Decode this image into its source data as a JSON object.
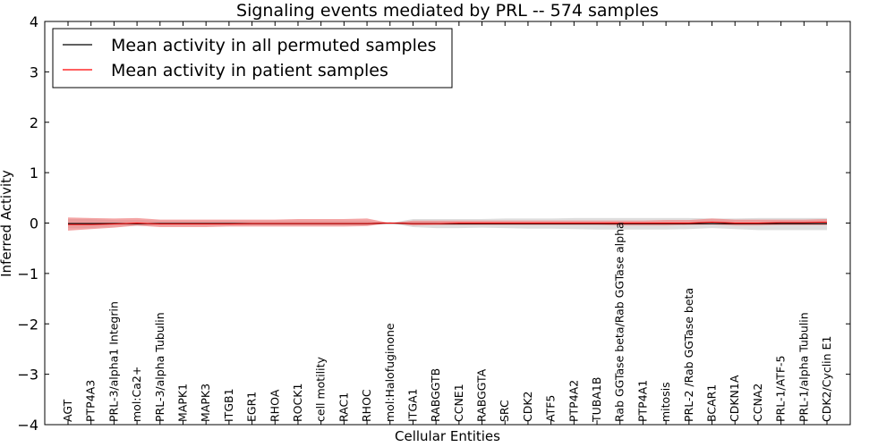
{
  "chart_data": {
    "type": "line",
    "title": "Signaling events mediated by PRL -- 574 samples",
    "xlabel": "Cellular Entities",
    "ylabel": "Inferred Activity",
    "ylim": [
      -4,
      4
    ],
    "yticks": [
      -4,
      -3,
      -2,
      -1,
      0,
      1,
      2,
      3,
      4
    ],
    "ytick_labels": [
      "−4",
      "−3",
      "−2",
      "−1",
      "0",
      "1",
      "2",
      "3",
      "4"
    ],
    "legend_position": "top-left",
    "categories": [
      "AGT",
      "PTP4A3",
      "PRL-3/alpha1 Integrin",
      "mol:Ca2+",
      "PRL-3/alpha Tubulin",
      "MAPK1",
      "MAPK3",
      "ITGB1",
      "EGR1",
      "RHOA",
      "ROCK1",
      "cell motility",
      "RAC1",
      "RHOC",
      "mol:Halofuginone",
      "ITGA1",
      "RABGGTB",
      "CCNE1",
      "RABGGTA",
      "SRC",
      "CDK2",
      "ATF5",
      "PTP4A2",
      "TUBA1B",
      "Rab GGTase beta/Rab GGTase alpha",
      "PTP4A1",
      "mitosis",
      "PRL-2 /Rab GGTase beta",
      "BCAR1",
      "CDKN1A",
      "CCNA2",
      "PRL-1/ATF-5",
      "PRL-1/alpha Tubulin",
      "CDK2/Cyclin E1"
    ],
    "series": [
      {
        "name": "Mean activity in all permuted samples",
        "color": "#000000",
        "values": [
          -0.01,
          -0.01,
          -0.01,
          -0.01,
          -0.01,
          -0.01,
          -0.01,
          -0.01,
          -0.01,
          -0.01,
          -0.01,
          -0.01,
          -0.01,
          -0.01,
          0.0,
          -0.01,
          -0.01,
          -0.01,
          -0.01,
          -0.01,
          -0.01,
          -0.01,
          -0.01,
          -0.01,
          -0.01,
          -0.01,
          -0.01,
          -0.01,
          -0.01,
          -0.01,
          -0.01,
          -0.01,
          -0.01,
          -0.01
        ],
        "band_lower": [
          -0.1,
          -0.1,
          -0.07,
          -0.06,
          -0.06,
          -0.06,
          -0.06,
          -0.06,
          -0.05,
          -0.05,
          -0.05,
          -0.05,
          -0.05,
          -0.05,
          0.0,
          -0.08,
          -0.1,
          -0.1,
          -0.09,
          -0.1,
          -0.11,
          -0.11,
          -0.12,
          -0.13,
          -0.13,
          -0.13,
          -0.13,
          -0.12,
          -0.1,
          -0.12,
          -0.14,
          -0.14,
          -0.14,
          -0.14
        ],
        "band_upper": [
          0.08,
          0.08,
          0.06,
          0.06,
          0.05,
          0.05,
          0.05,
          0.05,
          0.05,
          0.05,
          0.05,
          0.05,
          0.05,
          0.05,
          0.0,
          0.08,
          0.08,
          0.08,
          0.08,
          0.09,
          0.09,
          0.09,
          0.1,
          0.1,
          0.1,
          0.1,
          0.1,
          0.1,
          0.09,
          0.09,
          0.1,
          0.1,
          0.1,
          0.1
        ],
        "band_color": "#d8d8d8"
      },
      {
        "name": "Mean activity in patient samples",
        "color": "#ff0000",
        "values": [
          -0.03,
          -0.03,
          -0.02,
          0.0,
          -0.02,
          -0.02,
          -0.02,
          -0.02,
          -0.01,
          -0.01,
          -0.01,
          -0.01,
          -0.01,
          -0.01,
          0.0,
          -0.01,
          -0.01,
          0.0,
          0.0,
          0.0,
          0.0,
          0.0,
          0.0,
          0.0,
          0.0,
          0.0,
          0.0,
          0.0,
          0.02,
          0.0,
          0.0,
          0.01,
          0.01,
          0.02
        ],
        "band_lower": [
          -0.15,
          -0.12,
          -0.09,
          -0.05,
          -0.08,
          -0.08,
          -0.08,
          -0.07,
          -0.07,
          -0.07,
          -0.07,
          -0.07,
          -0.07,
          -0.06,
          0.0,
          -0.05,
          -0.04,
          -0.04,
          -0.04,
          -0.04,
          -0.04,
          -0.04,
          -0.04,
          -0.04,
          -0.05,
          -0.05,
          -0.05,
          -0.04,
          -0.03,
          -0.05,
          -0.05,
          -0.04,
          -0.04,
          -0.04
        ],
        "band_upper": [
          0.11,
          0.1,
          0.09,
          0.1,
          0.07,
          0.07,
          0.07,
          0.07,
          0.07,
          0.07,
          0.08,
          0.08,
          0.08,
          0.09,
          0.0,
          0.05,
          0.05,
          0.05,
          0.05,
          0.05,
          0.05,
          0.05,
          0.05,
          0.05,
          0.05,
          0.05,
          0.06,
          0.06,
          0.09,
          0.07,
          0.07,
          0.07,
          0.07,
          0.08
        ],
        "band_color": "#f08080"
      }
    ]
  }
}
